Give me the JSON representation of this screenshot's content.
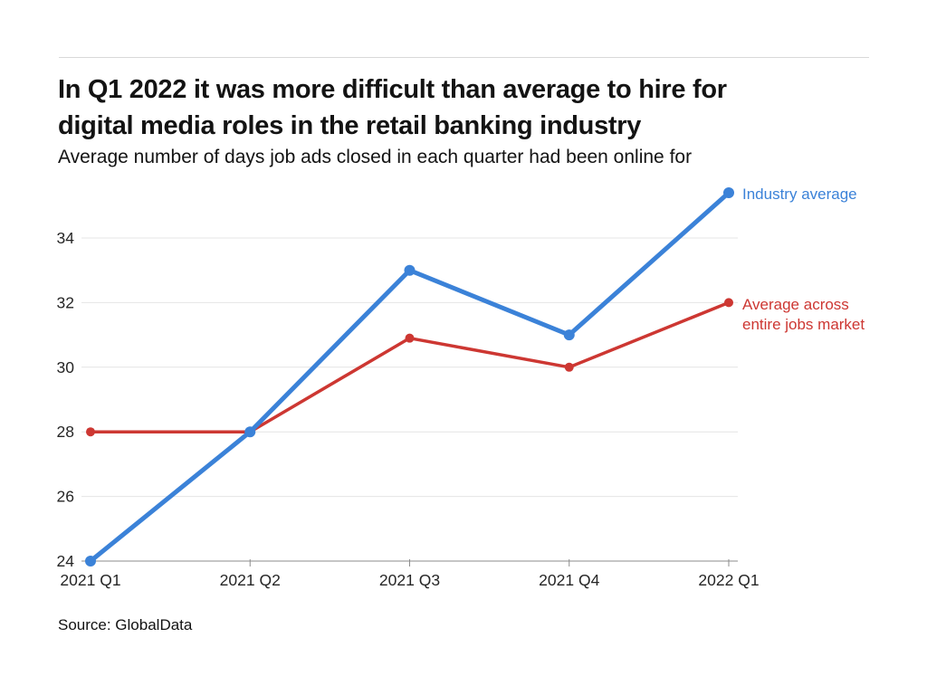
{
  "chart": {
    "title_line1": "In Q1 2022 it was more difficult than average to hire for",
    "title_line2": "digital media roles in the retail banking industry",
    "subtitle": "Average number of days job ads closed in each quarter had been online for",
    "source": "Source: GlobalData",
    "legend": {
      "industry_label": "Industry average",
      "market_label_line1": "Average across",
      "market_label_line2": "entire jobs market"
    }
  },
  "chart_data": {
    "type": "line",
    "title": "In Q1 2022 it was more difficult than average to hire for digital media roles in the retail banking industry",
    "subtitle": "Average number of days job ads closed in each quarter had been online for",
    "source": "Source: GlobalData",
    "categories": [
      "2021 Q1",
      "2021 Q2",
      "2021 Q3",
      "2021 Q4",
      "2022 Q1"
    ],
    "series": [
      {
        "name": "Industry average",
        "color": "#3b82d8",
        "values": [
          24,
          28,
          33,
          31,
          35.4
        ],
        "line_width": 5,
        "marker_radius": 6
      },
      {
        "name": "Average across entire jobs market",
        "color": "#cd3732",
        "values": [
          28,
          28,
          30.9,
          30,
          32
        ],
        "line_width": 3.5,
        "marker_radius": 5
      }
    ],
    "xlabel": "",
    "ylabel": "",
    "yticks": [
      24,
      26,
      28,
      30,
      32,
      34
    ],
    "ylim": [
      24,
      35.9
    ],
    "grid": true,
    "legend_position": "right-of-line-endpoints",
    "colors": {
      "gridline": "#e4e4e4",
      "axis_line": "#8d8d8d",
      "tick_mark": "#8d8d8d",
      "tick_label": "#262626",
      "background": "#ffffff"
    }
  }
}
